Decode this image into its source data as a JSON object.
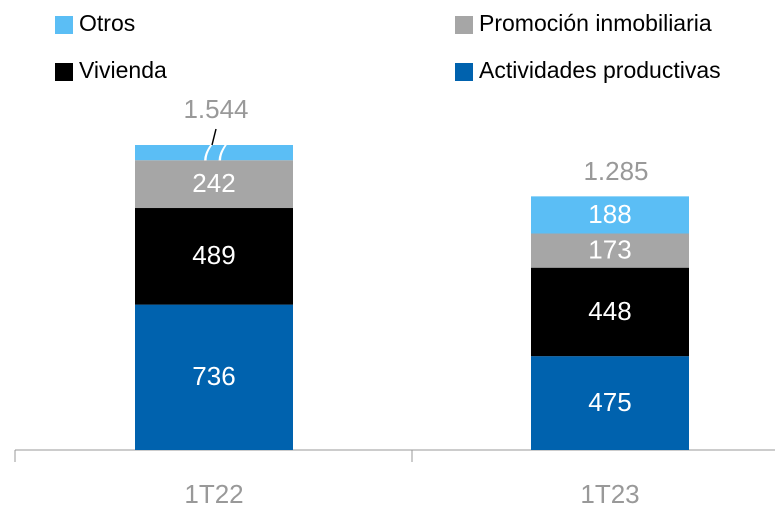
{
  "chart_data": {
    "type": "bar",
    "stacked": true,
    "categories": [
      "1T22",
      "1T23"
    ],
    "series": [
      {
        "name": "Actividades productivas",
        "color": "#0062ae",
        "values": [
          736,
          475
        ]
      },
      {
        "name": "Vivienda",
        "color": "#000000",
        "values": [
          489,
          448
        ]
      },
      {
        "name": "Promoción inmobiliaria",
        "color": "#a6a6a6",
        "values": [
          242,
          173
        ]
      },
      {
        "name": "Otros",
        "color": "#5bbef5",
        "values": [
          77,
          188
        ]
      }
    ],
    "totals": {
      "values": [
        1544,
        1285
      ],
      "value_labels": [
        "1.544",
        "1.285"
      ]
    }
  }
}
